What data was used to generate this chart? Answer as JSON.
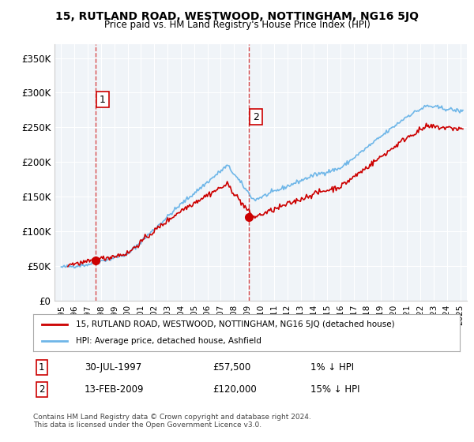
{
  "title": "15, RUTLAND ROAD, WESTWOOD, NOTTINGHAM, NG16 5JQ",
  "subtitle": "Price paid vs. HM Land Registry's House Price Index (HPI)",
  "ylabel_ticks": [
    "£0",
    "£50K",
    "£100K",
    "£150K",
    "£200K",
    "£250K",
    "£300K",
    "£350K"
  ],
  "ytick_vals": [
    0,
    50000,
    100000,
    150000,
    200000,
    250000,
    300000,
    350000
  ],
  "ylim": [
    0,
    370000
  ],
  "xlim_start": 1995.0,
  "xlim_end": 2025.5,
  "sale1_date": 1997.58,
  "sale1_price": 57500,
  "sale1_label": "1",
  "sale2_date": 2009.12,
  "sale2_price": 120000,
  "sale2_label": "2",
  "legend_line1": "15, RUTLAND ROAD, WESTWOOD, NOTTINGHAM, NG16 5JQ (detached house)",
  "legend_line2": "HPI: Average price, detached house, Ashfield",
  "ann1_box": "1",
  "ann1_date_str": "30-JUL-1997",
  "ann1_price_str": "£57,500",
  "ann1_hpi_str": "1% ↓ HPI",
  "ann2_box": "2",
  "ann2_date_str": "13-FEB-2009",
  "ann2_price_str": "£120,000",
  "ann2_hpi_str": "15% ↓ HPI",
  "footer": "Contains HM Land Registry data © Crown copyright and database right 2024.\nThis data is licensed under the Open Government Licence v3.0.",
  "hpi_color": "#6eb6e8",
  "price_color": "#cc0000",
  "dot_color": "#cc0000",
  "bg_plot": "#f0f4f8",
  "grid_color": "#ffffff",
  "dashed_color": "#cc0000"
}
